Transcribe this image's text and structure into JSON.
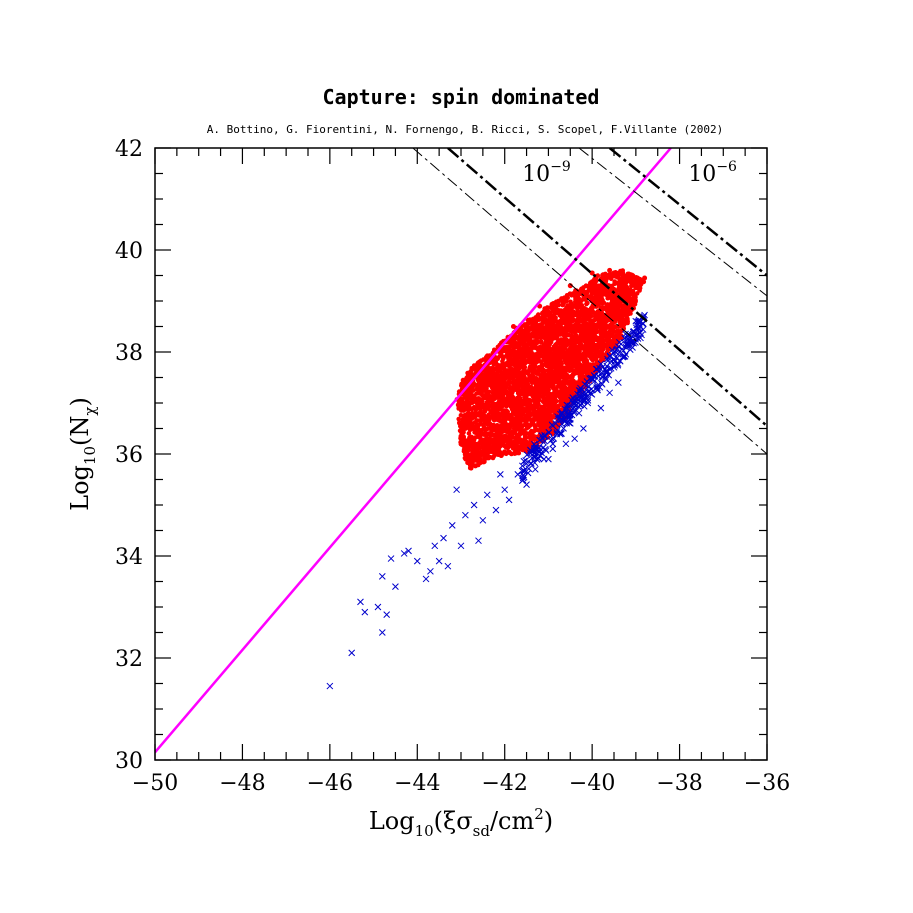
{
  "chart_data": {
    "type": "scatter",
    "title": "Capture: spin dominated",
    "subtitle": "A. Bottino, G. Fiorentini, N. Fornengo, B. Ricci, S. Scopel, F.Villante (2002)",
    "xlabel": {
      "base": "Log",
      "sub": "10",
      "open": "(ξσ",
      "sub2": "sd",
      "mid": "/cm",
      "sup": "2",
      "close": ")"
    },
    "ylabel": {
      "base": "Log",
      "sub": "10",
      "open": "(N",
      "sub2": "χ",
      "close": ")"
    },
    "xlim": [
      -50,
      -36
    ],
    "ylim": [
      30,
      42
    ],
    "x_ticks": [
      -50,
      -48,
      -46,
      -44,
      -42,
      -40,
      -38,
      -36
    ],
    "x_tick_labels": [
      "−50",
      "−48",
      "−46",
      "−44",
      "−42",
      "−40",
      "−38",
      "−36"
    ],
    "y_ticks": [
      30,
      32,
      34,
      36,
      38,
      40,
      42
    ],
    "y_tick_labels": [
      "30",
      "32",
      "34",
      "36",
      "38",
      "40",
      "42"
    ],
    "grid": false,
    "legend": "none",
    "colors": {
      "red_series": "#ff0000",
      "blue_series": "#0000cc",
      "magenta_line": "#ff00ff",
      "black_lines": "#000000"
    },
    "lines": [
      {
        "style": "solid",
        "color": "#ff00ff",
        "points": [
          [
            -50,
            30.15
          ],
          [
            -38.2,
            42
          ]
        ]
      },
      {
        "label": "",
        "style": "dash-dot-bold",
        "color": "#000000",
        "points": [
          [
            -43.3,
            42
          ],
          [
            -36,
            36.55
          ]
        ]
      },
      {
        "label": "",
        "style": "dash-dot-thin",
        "color": "#000000",
        "points": [
          [
            -44.1,
            42
          ],
          [
            -36,
            36.0
          ]
        ]
      },
      {
        "label": "",
        "style": "dash-dot-bold",
        "color": "#000000",
        "points": [
          [
            -39.6,
            42
          ],
          [
            -36,
            39.5
          ]
        ]
      },
      {
        "label": "",
        "style": "dash-dot-thin",
        "color": "#000000",
        "points": [
          [
            -40.3,
            42
          ],
          [
            -36,
            39.1
          ]
        ]
      }
    ],
    "annotations": [
      {
        "base": "10",
        "sup": "−9",
        "x": -41.6,
        "y": 41.35
      },
      {
        "base": "10",
        "sup": "−6",
        "x": -37.8,
        "y": 41.35
      }
    ],
    "series": [
      {
        "color": "#ff0000",
        "marker": "filled-circle",
        "region_polygon": [
          [
            -43.1,
            37.1
          ],
          [
            -42.9,
            37.6
          ],
          [
            -42.3,
            38.0
          ],
          [
            -41.7,
            38.5
          ],
          [
            -41.0,
            38.9
          ],
          [
            -40.4,
            39.2
          ],
          [
            -39.9,
            39.5
          ],
          [
            -39.3,
            39.6
          ],
          [
            -38.8,
            39.4
          ],
          [
            -39.3,
            38.3
          ],
          [
            -39.9,
            37.6
          ],
          [
            -40.4,
            37.0
          ],
          [
            -40.8,
            36.45
          ],
          [
            -41.4,
            36.05
          ],
          [
            -42.2,
            35.95
          ],
          [
            -42.8,
            35.7
          ],
          [
            -43.0,
            36.1
          ]
        ],
        "sample_points": [
          [
            -43.0,
            37.0
          ],
          [
            -42.5,
            37.7
          ],
          [
            -41.8,
            38.5
          ],
          [
            -41.2,
            38.9
          ],
          [
            -40.5,
            39.3
          ],
          [
            -40.0,
            39.55
          ],
          [
            -39.6,
            39.6
          ],
          [
            -39.2,
            39.5
          ],
          [
            -38.8,
            39.45
          ],
          [
            -42.9,
            36.0
          ],
          [
            -42.1,
            36.0
          ],
          [
            -41.3,
            36.1
          ],
          [
            -40.9,
            36.4
          ]
        ]
      },
      {
        "color": "#0000cc",
        "marker": "x",
        "points": [
          [
            -46.0,
            31.45
          ],
          [
            -45.5,
            32.1
          ],
          [
            -44.8,
            32.5
          ],
          [
            -45.2,
            32.9
          ],
          [
            -45.3,
            33.1
          ],
          [
            -44.9,
            33.0
          ],
          [
            -44.7,
            32.85
          ],
          [
            -44.8,
            33.6
          ],
          [
            -44.5,
            33.4
          ],
          [
            -44.6,
            33.95
          ],
          [
            -44.3,
            34.05
          ],
          [
            -43.8,
            33.55
          ],
          [
            -43.5,
            33.9
          ],
          [
            -43.4,
            34.35
          ],
          [
            -43.2,
            34.6
          ],
          [
            -43.1,
            35.3
          ],
          [
            -43.6,
            34.2
          ],
          [
            -43.3,
            33.8
          ],
          [
            -42.9,
            34.8
          ],
          [
            -42.7,
            35.0
          ],
          [
            -42.5,
            34.7
          ],
          [
            -42.4,
            35.2
          ],
          [
            -42.2,
            34.9
          ],
          [
            -42.0,
            35.3
          ],
          [
            -42.1,
            35.6
          ],
          [
            -41.9,
            35.1
          ],
          [
            -41.7,
            35.6
          ],
          [
            -41.5,
            35.4
          ],
          [
            -41.3,
            35.7
          ],
          [
            -41.1,
            35.9
          ],
          [
            -40.9,
            36.1
          ],
          [
            -40.7,
            36.4
          ],
          [
            -40.5,
            36.6
          ],
          [
            -40.3,
            36.8
          ],
          [
            -40.1,
            37.0
          ],
          [
            -39.9,
            37.3
          ],
          [
            -39.7,
            37.5
          ],
          [
            -39.5,
            37.7
          ],
          [
            -39.3,
            37.9
          ],
          [
            -39.1,
            38.2
          ],
          [
            -38.9,
            38.5
          ],
          [
            -40.6,
            36.2
          ],
          [
            -40.2,
            36.5
          ],
          [
            -39.8,
            36.9
          ],
          [
            -41.0,
            35.9
          ],
          [
            -40.4,
            36.3
          ],
          [
            -39.6,
            37.2
          ],
          [
            -39.4,
            37.4
          ],
          [
            -43.0,
            34.2
          ],
          [
            -42.6,
            34.3
          ],
          [
            -43.7,
            33.7
          ],
          [
            -44.2,
            34.1
          ],
          [
            -44.0,
            33.9
          ]
        ]
      }
    ]
  }
}
